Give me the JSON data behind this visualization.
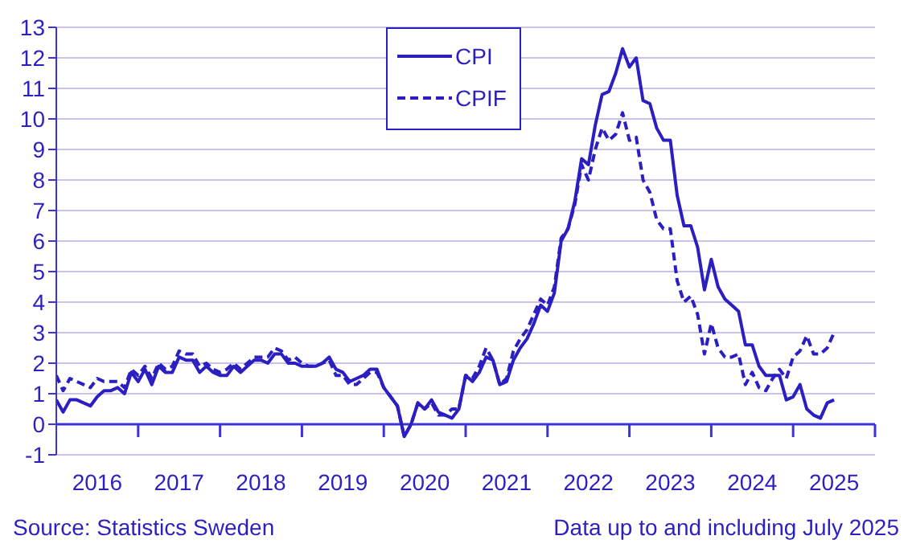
{
  "chart_data": {
    "type": "line",
    "x": [
      "2016-01",
      "2016-02",
      "2016-03",
      "2016-04",
      "2016-05",
      "2016-06",
      "2016-07",
      "2016-08",
      "2016-09",
      "2016-10",
      "2016-11",
      "2016-12",
      "2017-01",
      "2017-02",
      "2017-03",
      "2017-04",
      "2017-05",
      "2017-06",
      "2017-07",
      "2017-08",
      "2017-09",
      "2017-10",
      "2017-11",
      "2017-12",
      "2018-01",
      "2018-02",
      "2018-03",
      "2018-04",
      "2018-05",
      "2018-06",
      "2018-07",
      "2018-08",
      "2018-09",
      "2018-10",
      "2018-11",
      "2018-12",
      "2019-01",
      "2019-02",
      "2019-03",
      "2019-04",
      "2019-05",
      "2019-06",
      "2019-07",
      "2019-08",
      "2019-09",
      "2019-10",
      "2019-11",
      "2019-12",
      "2020-01",
      "2020-02",
      "2020-03",
      "2020-04",
      "2020-05",
      "2020-06",
      "2020-07",
      "2020-08",
      "2020-09",
      "2020-10",
      "2020-11",
      "2020-12",
      "2021-01",
      "2021-02",
      "2021-03",
      "2021-04",
      "2021-05",
      "2021-06",
      "2021-07",
      "2021-08",
      "2021-09",
      "2021-10",
      "2021-11",
      "2021-12",
      "2022-01",
      "2022-02",
      "2022-03",
      "2022-04",
      "2022-05",
      "2022-06",
      "2022-07",
      "2022-08",
      "2022-09",
      "2022-10",
      "2022-11",
      "2022-12",
      "2023-01",
      "2023-02",
      "2023-03",
      "2023-04",
      "2023-05",
      "2023-06",
      "2023-07",
      "2023-08",
      "2023-09",
      "2023-10",
      "2023-11",
      "2023-12",
      "2024-01",
      "2024-02",
      "2024-03",
      "2024-04",
      "2024-05",
      "2024-06",
      "2024-07",
      "2024-08",
      "2024-09",
      "2024-10",
      "2024-11",
      "2024-12",
      "2025-01",
      "2025-02",
      "2025-03",
      "2025-04",
      "2025-05",
      "2025-06",
      "2025-07"
    ],
    "series": [
      {
        "name": "CPI",
        "color": "#2b1fc1",
        "line_style": "solid",
        "values": [
          0.8,
          0.4,
          0.8,
          0.8,
          0.7,
          0.6,
          0.9,
          1.1,
          1.1,
          1.2,
          1.0,
          1.7,
          1.4,
          1.8,
          1.3,
          1.9,
          1.7,
          1.7,
          2.2,
          2.1,
          2.1,
          1.7,
          1.9,
          1.7,
          1.6,
          1.6,
          1.9,
          1.7,
          1.9,
          2.1,
          2.1,
          2.0,
          2.3,
          2.3,
          2.0,
          2.0,
          1.9,
          1.9,
          1.9,
          2.0,
          2.2,
          1.8,
          1.7,
          1.4,
          1.5,
          1.6,
          1.8,
          1.8,
          1.2,
          0.9,
          0.6,
          -0.4,
          0.0,
          0.7,
          0.5,
          0.8,
          0.4,
          0.3,
          0.2,
          0.5,
          1.6,
          1.4,
          1.7,
          2.2,
          2.1,
          1.3,
          1.4,
          2.1,
          2.5,
          2.8,
          3.3,
          3.9,
          3.7,
          4.3,
          6.0,
          6.4,
          7.3,
          8.7,
          8.5,
          9.8,
          10.8,
          10.9,
          11.5,
          12.3,
          11.7,
          12.0,
          10.6,
          10.5,
          9.7,
          9.3,
          9.3,
          7.5,
          6.5,
          6.5,
          5.8,
          4.4,
          5.4,
          4.5,
          4.1,
          3.9,
          3.7,
          2.6,
          2.6,
          1.9,
          1.6,
          1.6,
          1.6,
          0.8,
          0.9,
          1.3,
          0.5,
          0.3,
          0.2,
          0.7,
          0.8
        ]
      },
      {
        "name": "CPIF",
        "color": "#2b1fc1",
        "line_style": "dashed",
        "values": [
          1.6,
          1.1,
          1.5,
          1.4,
          1.3,
          1.2,
          1.5,
          1.4,
          1.4,
          1.4,
          1.2,
          1.8,
          1.6,
          1.9,
          1.5,
          2.0,
          1.8,
          1.9,
          2.4,
          2.3,
          2.3,
          1.9,
          2.0,
          1.8,
          1.7,
          1.8,
          2.0,
          1.8,
          2.0,
          2.2,
          2.2,
          2.2,
          2.5,
          2.4,
          2.1,
          2.2,
          2.0,
          1.9,
          1.9,
          2.0,
          2.1,
          1.6,
          1.6,
          1.3,
          1.3,
          1.5,
          1.7,
          1.7,
          1.2,
          0.9,
          0.6,
          -0.4,
          0.0,
          0.7,
          0.5,
          0.7,
          0.3,
          0.3,
          0.5,
          0.5,
          1.6,
          1.5,
          1.9,
          2.5,
          2.1,
          1.3,
          1.5,
          2.4,
          2.8,
          3.1,
          3.6,
          4.1,
          3.9,
          4.5,
          6.1,
          6.4,
          7.2,
          8.5,
          8.0,
          9.0,
          9.7,
          9.3,
          9.5,
          10.2,
          9.3,
          9.4,
          8.0,
          7.6,
          6.7,
          6.4,
          6.4,
          4.7,
          4.0,
          4.2,
          3.6,
          2.3,
          3.3,
          2.5,
          2.2,
          2.2,
          2.3,
          1.3,
          1.7,
          1.2,
          1.1,
          1.5,
          1.8,
          1.5,
          2.2,
          2.4,
          2.9,
          2.3,
          2.3,
          2.5,
          3.0
        ]
      }
    ],
    "xlim": [
      "2016-01",
      "2026-01"
    ],
    "xticks": [
      {
        "value": "2016-07",
        "label": "2016"
      },
      {
        "value": "2017-01",
        "label": null
      },
      {
        "value": "2017-07",
        "label": "2017"
      },
      {
        "value": "2018-01",
        "label": null
      },
      {
        "value": "2018-07",
        "label": "2018"
      },
      {
        "value": "2019-01",
        "label": null
      },
      {
        "value": "2019-07",
        "label": "2019"
      },
      {
        "value": "2020-01",
        "label": null
      },
      {
        "value": "2020-07",
        "label": "2020"
      },
      {
        "value": "2021-01",
        "label": null
      },
      {
        "value": "2021-07",
        "label": "2021"
      },
      {
        "value": "2022-01",
        "label": null
      },
      {
        "value": "2022-07",
        "label": "2022"
      },
      {
        "value": "2023-01",
        "label": null
      },
      {
        "value": "2023-07",
        "label": "2023"
      },
      {
        "value": "2024-01",
        "label": null
      },
      {
        "value": "2024-07",
        "label": "2024"
      },
      {
        "value": "2025-01",
        "label": null
      },
      {
        "value": "2025-07",
        "label": "2025"
      },
      {
        "value": "2026-01",
        "label": null
      }
    ],
    "ylim": [
      -1,
      13
    ],
    "yticks": [
      -1,
      0,
      1,
      2,
      3,
      4,
      5,
      6,
      7,
      8,
      9,
      10,
      11,
      12,
      13
    ],
    "grid": "y",
    "ref_lines": [
      {
        "axis": "y",
        "value": 0,
        "color": "#3d34d6",
        "line_style": "solid"
      }
    ],
    "legend": "top",
    "annotations": [
      "Source: Statistics Sweden",
      "Data up to and including July 2025"
    ]
  }
}
